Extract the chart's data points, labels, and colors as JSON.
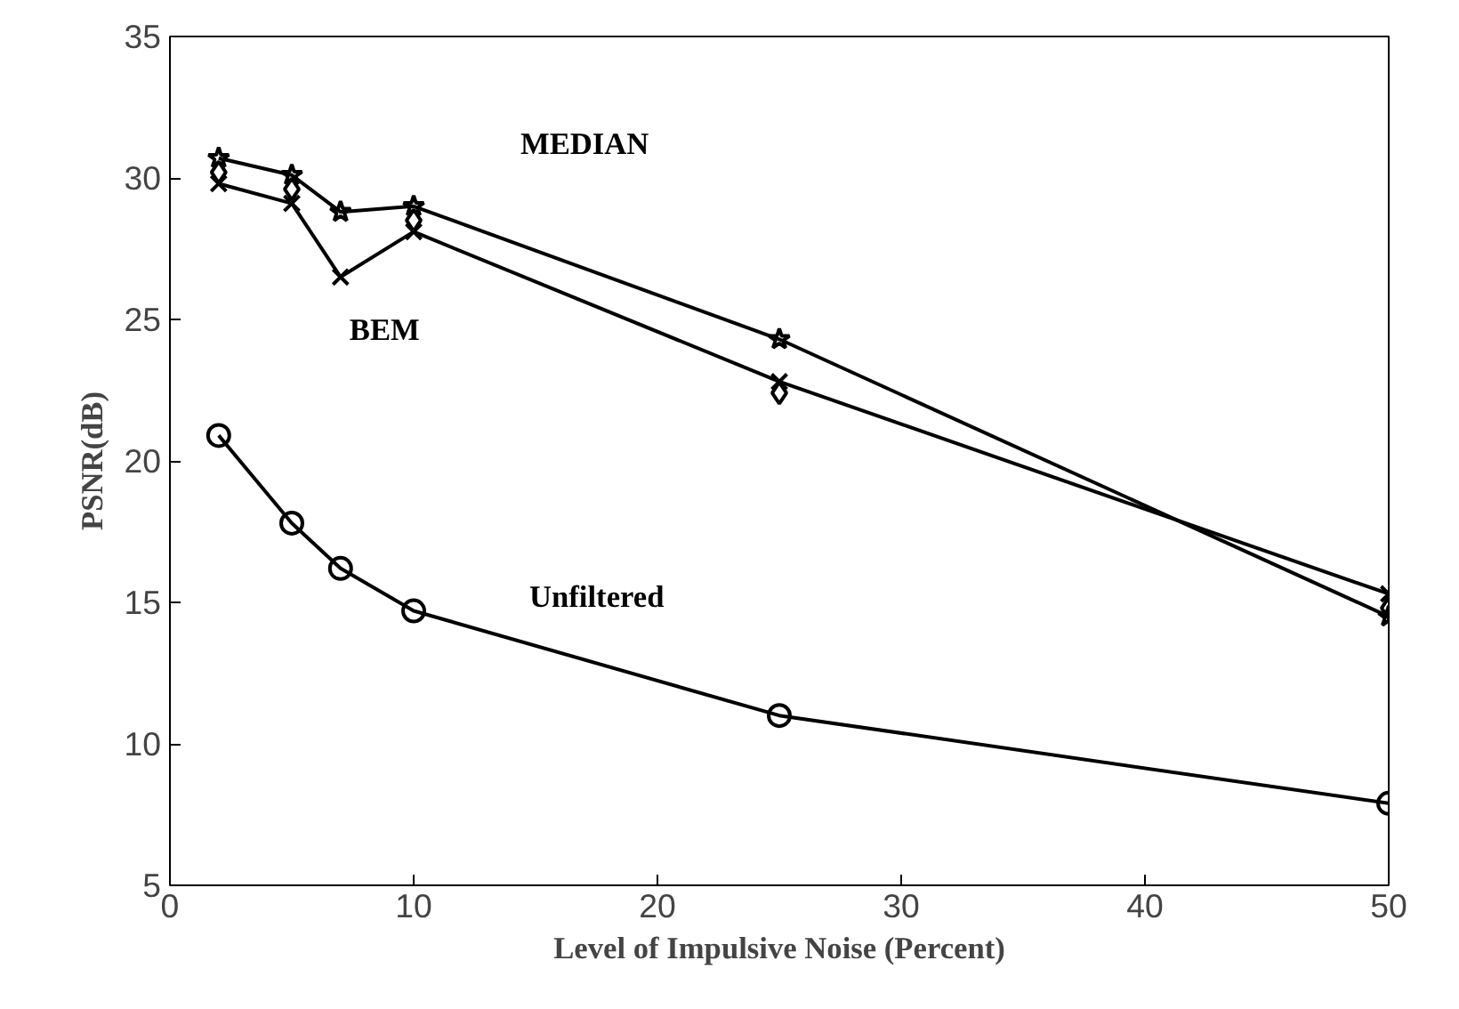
{
  "chart_data": {
    "type": "line",
    "xlabel": "Level of Impulsive Noise (Percent)",
    "ylabel": "PSNR(dB)",
    "x": [
      2,
      5,
      7,
      10,
      25,
      50
    ],
    "series": [
      {
        "name": "MEDIAN",
        "color": "#000000",
        "marker": "star",
        "values": [
          30.7,
          30.1,
          28.8,
          29.0,
          24.3,
          14.5
        ]
      },
      {
        "name": "BEM",
        "color": "#000000",
        "marker": "cross",
        "values": [
          29.8,
          29.1,
          26.5,
          28.1,
          22.8,
          15.3
        ]
      },
      {
        "color": "#000000",
        "marker": "diamond",
        "type": "scatter",
        "values": [
          30.2,
          29.6,
          null,
          28.5,
          22.4,
          14.8
        ]
      },
      {
        "name": "Unfiltered",
        "color": "#000000",
        "marker": "circle",
        "values": [
          20.9,
          17.8,
          16.2,
          14.7,
          11.0,
          7.9
        ]
      }
    ],
    "xlim": [
      0,
      50
    ],
    "ylim": [
      5,
      35
    ],
    "xticks": [
      0,
      10,
      20,
      30,
      40,
      50
    ],
    "yticks": [
      5,
      10,
      15,
      20,
      25,
      30,
      35
    ],
    "grid": false,
    "line_style": "solid"
  }
}
